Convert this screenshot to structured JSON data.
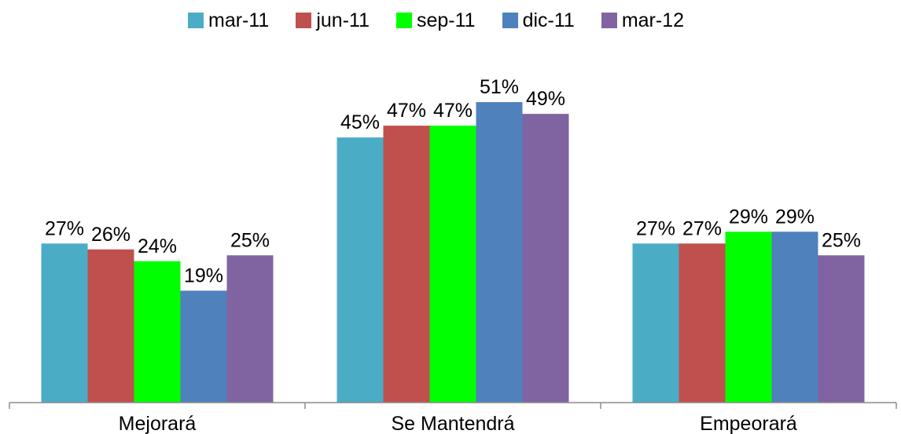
{
  "chart_data": {
    "type": "bar",
    "title": "",
    "xlabel": "",
    "ylabel": "",
    "categories": [
      "Mejorará",
      "Se Mantendrá",
      "Empeorará"
    ],
    "series": [
      {
        "name": "mar-11",
        "color": "#4BACC6",
        "values": [
          27,
          45,
          27
        ],
        "labels": [
          "27%",
          "45%",
          "27%"
        ]
      },
      {
        "name": "jun-11",
        "color": "#C0504D",
        "values": [
          26,
          47,
          27
        ],
        "labels": [
          "26%",
          "47%",
          "27%"
        ]
      },
      {
        "name": "sep-11",
        "color": "#00FF00",
        "values": [
          24,
          47,
          29
        ],
        "labels": [
          "24%",
          "47%",
          "29%"
        ]
      },
      {
        "name": "dic-11",
        "color": "#4F81BD",
        "values": [
          19,
          51,
          29
        ],
        "labels": [
          "19%",
          "51%",
          "29%"
        ]
      },
      {
        "name": "mar-12",
        "color": "#8064A2",
        "values": [
          25,
          49,
          25
        ],
        "labels": [
          "25%",
          "49%",
          "25%"
        ]
      }
    ],
    "ylim": [
      0,
      63
    ],
    "grid": false,
    "legend_position": "top"
  }
}
